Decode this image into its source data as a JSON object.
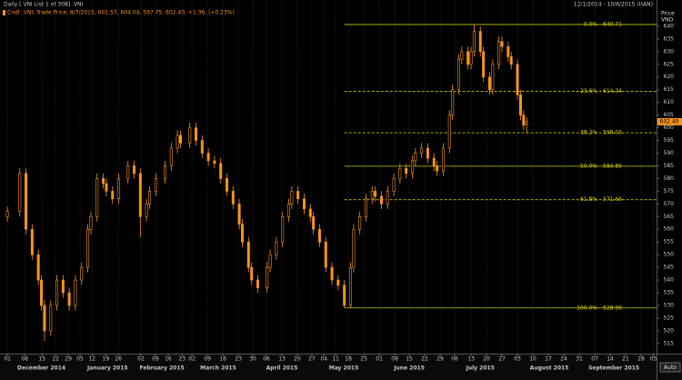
{
  "chart_data": {
    "type": "candlestick",
    "header": "Daily [.VNI List 1 of 308] .VNI",
    "date_range": "12/1/2014 - 10/6/2015 (HAN)",
    "legend_tag": "Cndl",
    "legend": ".VNI, Trade Price, 8/7/2015, 601.57, 604.04, 597.75, 602.40, +1.36, (+0.23%)",
    "y_axis_title": "Price",
    "y_axis_unit": "VND",
    "autoscale": "Auto",
    "color": "#f7941d",
    "x": [
      0,
      4,
      6,
      8,
      10,
      11,
      12,
      14,
      16,
      18,
      20,
      22,
      24,
      26,
      27,
      29,
      31,
      32,
      34,
      36,
      39,
      41,
      43,
      45,
      46,
      48,
      51,
      53,
      55,
      56,
      59,
      61,
      63,
      65,
      67,
      69,
      71,
      73,
      75,
      76,
      78,
      79,
      81,
      84,
      85,
      87,
      89,
      91,
      92,
      94,
      96,
      98,
      99,
      101,
      103,
      105,
      107,
      109,
      111,
      112,
      114,
      116,
      118,
      119,
      121,
      123,
      125,
      127,
      129,
      131,
      132,
      134,
      136,
      138,
      139,
      141,
      143,
      144,
      146,
      147,
      149,
      150,
      151,
      153,
      154,
      156,
      157,
      159,
      160,
      162,
      163,
      165,
      166,
      167,
      168
    ],
    "open": [
      565,
      567,
      582,
      560,
      550,
      540,
      530,
      520,
      530,
      540,
      535,
      530,
      540,
      545,
      560,
      565,
      580,
      578,
      575,
      572,
      580,
      585,
      582,
      565,
      570,
      575,
      580,
      585,
      592,
      597,
      594,
      600,
      595,
      590,
      587,
      586,
      580,
      575,
      570,
      562,
      555,
      545,
      540,
      537,
      545,
      550,
      555,
      565,
      570,
      575,
      572,
      568,
      565,
      560,
      555,
      545,
      540,
      538,
      530,
      545,
      560,
      565,
      572,
      575,
      573,
      570,
      575,
      580,
      584,
      582,
      587,
      590,
      592,
      588,
      585,
      583,
      592,
      605,
      615,
      627,
      630,
      625,
      630,
      638,
      630,
      620,
      615,
      625,
      634,
      632,
      628,
      625,
      613,
      605,
      601.57
    ],
    "high": [
      569,
      584,
      584,
      562,
      552,
      542,
      532,
      532,
      542,
      542,
      537,
      542,
      547,
      562,
      567,
      582,
      582,
      580,
      577,
      582,
      587,
      587,
      584,
      572,
      577,
      582,
      587,
      594,
      599,
      599,
      602,
      602,
      597,
      592,
      589,
      588,
      582,
      577,
      572,
      564,
      557,
      547,
      542,
      547,
      552,
      557,
      567,
      572,
      577,
      577,
      574,
      570,
      567,
      562,
      557,
      547,
      542,
      540,
      547,
      562,
      567,
      574,
      577,
      577,
      575,
      577,
      582,
      586,
      586,
      589,
      592,
      594,
      594,
      590,
      587,
      594,
      607,
      617,
      629,
      632,
      632,
      632,
      640.71,
      640,
      632,
      622,
      627,
      636,
      636,
      634,
      630,
      627,
      615,
      607,
      604.04
    ],
    "low": [
      563,
      565,
      558,
      548,
      538,
      528,
      516,
      518,
      528,
      533,
      528,
      528,
      538,
      543,
      558,
      563,
      576,
      573,
      570,
      570,
      578,
      580,
      557,
      563,
      568,
      573,
      578,
      583,
      590,
      592,
      592,
      593,
      588,
      585,
      584,
      578,
      573,
      568,
      560,
      553,
      543,
      538,
      535,
      535,
      543,
      548,
      553,
      563,
      568,
      570,
      566,
      563,
      558,
      553,
      543,
      538,
      536,
      528.99,
      529,
      543,
      558,
      563,
      570,
      571,
      568,
      568,
      573,
      578,
      580,
      580,
      585,
      588,
      586,
      583,
      581,
      581,
      590,
      603,
      613,
      625,
      623,
      623,
      628,
      628,
      618,
      613,
      613,
      623,
      630,
      626,
      623,
      611,
      603,
      599,
      597.75
    ],
    "close": [
      567,
      582,
      560,
      550,
      540,
      530,
      520,
      530,
      540,
      535,
      530,
      540,
      545,
      560,
      565,
      580,
      578,
      575,
      572,
      580,
      585,
      582,
      565,
      570,
      575,
      580,
      585,
      592,
      597,
      594,
      600,
      595,
      590,
      587,
      586,
      580,
      575,
      570,
      562,
      555,
      545,
      540,
      537,
      545,
      550,
      555,
      565,
      570,
      575,
      572,
      568,
      565,
      560,
      555,
      545,
      540,
      538,
      530,
      545,
      560,
      565,
      572,
      575,
      573,
      570,
      575,
      580,
      584,
      582,
      587,
      590,
      592,
      588,
      585,
      583,
      592,
      605,
      615,
      627,
      630,
      625,
      630,
      638,
      630,
      620,
      615,
      625,
      634,
      632,
      628,
      625,
      613,
      605,
      601,
      602.4
    ],
    "last_price": {
      "value": 602.4,
      "label": "602.40"
    },
    "xlim": [
      -2.4,
      210
    ],
    "ylim": [
      511,
      650
    ],
    "yticks": [
      515,
      520,
      525,
      530,
      535,
      540,
      545,
      550,
      555,
      560,
      565,
      570,
      575,
      580,
      585,
      590,
      595,
      600,
      605,
      610,
      615,
      620,
      625,
      630,
      635,
      640
    ],
    "xticks": [
      {
        "value": 0,
        "label": "01"
      },
      {
        "value": 5.6,
        "label": "08"
      },
      {
        "value": 11.2,
        "label": "15"
      },
      {
        "value": 15.6,
        "label": "22"
      },
      {
        "value": 19.7,
        "label": "29"
      },
      {
        "value": 23.5,
        "label": "05"
      },
      {
        "value": 27.4,
        "label": "12"
      },
      {
        "value": 31.8,
        "label": "19"
      },
      {
        "value": 35.9,
        "label": "26"
      },
      {
        "value": 43.2,
        "label": "02"
      },
      {
        "value": 47.9,
        "label": "09"
      },
      {
        "value": 52,
        "label": "16"
      },
      {
        "value": 56.5,
        "label": "23"
      },
      {
        "value": 59.7,
        "label": "02"
      },
      {
        "value": 64.7,
        "label": "09"
      },
      {
        "value": 69.7,
        "label": "16"
      },
      {
        "value": 74.7,
        "label": "23"
      },
      {
        "value": 79.4,
        "label": "30"
      },
      {
        "value": 83.8,
        "label": "06"
      },
      {
        "value": 88.8,
        "label": "13"
      },
      {
        "value": 93.8,
        "label": "20"
      },
      {
        "value": 98.5,
        "label": "27"
      },
      {
        "value": 102.4,
        "label": "04"
      },
      {
        "value": 106.2,
        "label": "11"
      },
      {
        "value": 110.3,
        "label": "18"
      },
      {
        "value": 115.3,
        "label": "25"
      },
      {
        "value": 120.3,
        "label": "01"
      },
      {
        "value": 125.3,
        "label": "08"
      },
      {
        "value": 130,
        "label": "15"
      },
      {
        "value": 135,
        "label": "22"
      },
      {
        "value": 140,
        "label": "29"
      },
      {
        "value": 144.7,
        "label": "06"
      },
      {
        "value": 150,
        "label": "13"
      },
      {
        "value": 155,
        "label": "20"
      },
      {
        "value": 160,
        "label": "27"
      },
      {
        "value": 165,
        "label": "03"
      },
      {
        "value": 170,
        "label": "10"
      },
      {
        "value": 175,
        "label": "17"
      },
      {
        "value": 180,
        "label": "24"
      },
      {
        "value": 185,
        "label": "31"
      },
      {
        "value": 190,
        "label": "07"
      },
      {
        "value": 195,
        "label": "14"
      },
      {
        "value": 200,
        "label": "21"
      },
      {
        "value": 205,
        "label": "28"
      },
      {
        "value": 209,
        "label": "05"
      }
    ],
    "months": [
      {
        "value": 11,
        "label": "December 2014"
      },
      {
        "value": 32.4,
        "label": "January 2015"
      },
      {
        "value": 50,
        "label": "February 2015"
      },
      {
        "value": 68.2,
        "label": "March 2015"
      },
      {
        "value": 88.8,
        "label": "April 2015"
      },
      {
        "value": 108.8,
        "label": "May 2015"
      },
      {
        "value": 130,
        "label": "June 2015"
      },
      {
        "value": 153,
        "label": "July 2015"
      },
      {
        "value": 175.3,
        "label": "August 2015"
      },
      {
        "value": 196.2,
        "label": "September 2015"
      }
    ],
    "grid": true,
    "fibonacci": {
      "anchor_x": 109,
      "color": "#c8c800",
      "levels": [
        {
          "label": "0.0%",
          "value": 640.71,
          "style": "solid"
        },
        {
          "label": "23.6%",
          "value": 614.34,
          "style": "dashed"
        },
        {
          "label": "38.2%",
          "value": 598.03,
          "style": "dashed"
        },
        {
          "label": "50.0%",
          "value": 584.85,
          "style": "solid"
        },
        {
          "label": "61.8%",
          "value": 571.66,
          "style": "dashed"
        },
        {
          "label": "100.0%",
          "value": 528.99,
          "style": "solid"
        }
      ]
    }
  }
}
